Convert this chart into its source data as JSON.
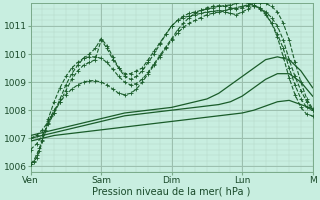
{
  "background_color": "#c8eee0",
  "grid_color_major": "#9bbfae",
  "grid_color_minor": "#b5d9c9",
  "line_color": "#1a5c2a",
  "xlabel": "Pression niveau de la mer( hPa )",
  "xlim": [
    0,
    96
  ],
  "ylim": [
    1005.8,
    1011.8
  ],
  "yticks": [
    1006,
    1007,
    1008,
    1009,
    1010,
    1011
  ],
  "xtick_labels": [
    "Ven",
    "Sam",
    "Dim",
    "Lun",
    "M"
  ],
  "xtick_positions": [
    0,
    24,
    48,
    72,
    96
  ],
  "series": [
    {
      "x": [
        0,
        4,
        8,
        12,
        16,
        20,
        24,
        28,
        32,
        36,
        40,
        44,
        48,
        52,
        56,
        60,
        64,
        68,
        72,
        76,
        80,
        84,
        88,
        92,
        96
      ],
      "y": [
        1006.9,
        1007.0,
        1007.1,
        1007.15,
        1007.2,
        1007.25,
        1007.3,
        1007.35,
        1007.4,
        1007.45,
        1007.5,
        1007.55,
        1007.6,
        1007.65,
        1007.7,
        1007.75,
        1007.8,
        1007.85,
        1007.9,
        1008.0,
        1008.15,
        1008.3,
        1008.35,
        1008.2,
        1008.05
      ],
      "style": "-",
      "marker": null,
      "lw": 0.9,
      "ms": 0
    },
    {
      "x": [
        0,
        4,
        8,
        12,
        16,
        20,
        24,
        28,
        32,
        36,
        40,
        44,
        48,
        52,
        56,
        60,
        64,
        68,
        72,
        76,
        80,
        84,
        88,
        92,
        96
      ],
      "y": [
        1007.0,
        1007.1,
        1007.2,
        1007.3,
        1007.4,
        1007.5,
        1007.6,
        1007.7,
        1007.8,
        1007.85,
        1007.9,
        1007.95,
        1008.0,
        1008.05,
        1008.1,
        1008.15,
        1008.2,
        1008.3,
        1008.5,
        1008.8,
        1009.1,
        1009.3,
        1009.3,
        1009.0,
        1008.5
      ],
      "style": "-",
      "marker": null,
      "lw": 0.9,
      "ms": 0
    },
    {
      "x": [
        0,
        4,
        8,
        12,
        16,
        20,
        24,
        28,
        32,
        36,
        40,
        44,
        48,
        52,
        56,
        60,
        64,
        68,
        72,
        76,
        80,
        84,
        88,
        92,
        96
      ],
      "y": [
        1007.1,
        1007.2,
        1007.3,
        1007.4,
        1007.5,
        1007.6,
        1007.7,
        1007.8,
        1007.9,
        1007.95,
        1008.0,
        1008.05,
        1008.1,
        1008.2,
        1008.3,
        1008.4,
        1008.6,
        1008.9,
        1009.2,
        1009.5,
        1009.8,
        1009.9,
        1009.8,
        1009.4,
        1008.8
      ],
      "style": "-",
      "marker": null,
      "lw": 0.9,
      "ms": 0
    },
    {
      "x": [
        0,
        2,
        4,
        6,
        8,
        10,
        12,
        14,
        16,
        18,
        20,
        22,
        24,
        26,
        28,
        30,
        32,
        34,
        36,
        38,
        40,
        42,
        44,
        46,
        48,
        50,
        52,
        54,
        56,
        58,
        60,
        62,
        64,
        66,
        68,
        70,
        72,
        74,
        76,
        78,
        80,
        82,
        84,
        86,
        88,
        90,
        92,
        94,
        96
      ],
      "y": [
        1007.0,
        1007.1,
        1007.3,
        1007.6,
        1007.9,
        1008.3,
        1008.7,
        1009.1,
        1009.4,
        1009.6,
        1009.7,
        1009.8,
        1010.5,
        1010.2,
        1009.8,
        1009.5,
        1009.3,
        1009.3,
        1009.4,
        1009.5,
        1009.8,
        1010.1,
        1010.4,
        1010.7,
        1011.0,
        1011.2,
        1011.3,
        1011.35,
        1011.4,
        1011.45,
        1011.5,
        1011.52,
        1011.55,
        1011.5,
        1011.45,
        1011.4,
        1011.5,
        1011.6,
        1011.7,
        1011.65,
        1011.5,
        1011.3,
        1011.0,
        1010.5,
        1009.8,
        1009.2,
        1008.7,
        1008.3,
        1008.0
      ],
      "style": "--",
      "marker": "+",
      "lw": 0.8,
      "ms": 2.5
    },
    {
      "x": [
        0,
        2,
        4,
        6,
        8,
        10,
        12,
        14,
        16,
        18,
        20,
        22,
        24,
        26,
        28,
        30,
        32,
        34,
        36,
        38,
        40,
        42,
        44,
        46,
        48,
        50,
        52,
        54,
        56,
        58,
        60,
        62,
        64,
        66,
        68,
        70,
        72,
        74,
        76,
        78,
        80,
        82,
        84,
        86,
        88,
        90,
        92,
        94,
        96
      ],
      "y": [
        1006.6,
        1006.8,
        1007.1,
        1007.5,
        1007.9,
        1008.4,
        1008.9,
        1009.3,
        1009.6,
        1009.85,
        1010.0,
        1010.2,
        1010.55,
        1010.3,
        1009.9,
        1009.5,
        1009.2,
        1009.1,
        1009.2,
        1009.4,
        1009.7,
        1010.0,
        1010.35,
        1010.7,
        1011.0,
        1011.2,
        1011.35,
        1011.45,
        1011.5,
        1011.55,
        1011.6,
        1011.65,
        1011.7,
        1011.72,
        1011.75,
        1011.8,
        1011.85,
        1011.82,
        1011.75,
        1011.6,
        1011.4,
        1011.1,
        1010.7,
        1010.2,
        1009.5,
        1008.9,
        1008.4,
        1008.1,
        1008.0
      ],
      "style": "--",
      "marker": "+",
      "lw": 0.8,
      "ms": 2.5
    },
    {
      "x": [
        0,
        1,
        2,
        3,
        4,
        5,
        6,
        7,
        8,
        10,
        12,
        14,
        16,
        18,
        20,
        22,
        24,
        26,
        28,
        30,
        32,
        34,
        36,
        38,
        40,
        42,
        44,
        46,
        48,
        50,
        52,
        54,
        56,
        58,
        60,
        62,
        64,
        66,
        68,
        70,
        72,
        74,
        76,
        78,
        80,
        82,
        84,
        86,
        88,
        90,
        92,
        94,
        96
      ],
      "y": [
        1006.1,
        1006.2,
        1006.4,
        1006.65,
        1006.95,
        1007.25,
        1007.55,
        1007.8,
        1008.0,
        1008.3,
        1008.55,
        1008.75,
        1008.9,
        1009.0,
        1009.05,
        1009.05,
        1009.0,
        1008.9,
        1008.75,
        1008.6,
        1008.55,
        1008.6,
        1008.75,
        1009.0,
        1009.3,
        1009.6,
        1009.9,
        1010.2,
        1010.5,
        1010.75,
        1010.95,
        1011.1,
        1011.2,
        1011.3,
        1011.4,
        1011.45,
        1011.5,
        1011.55,
        1011.6,
        1011.65,
        1011.7,
        1011.75,
        1011.8,
        1011.82,
        1011.8,
        1011.7,
        1011.5,
        1011.1,
        1010.5,
        1009.7,
        1009.0,
        1008.4,
        1008.05
      ],
      "style": "--",
      "marker": "+",
      "lw": 0.8,
      "ms": 2.5
    },
    {
      "x": [
        0,
        1,
        2,
        3,
        4,
        5,
        6,
        8,
        10,
        12,
        14,
        16,
        18,
        20,
        22,
        24,
        26,
        28,
        30,
        32,
        34,
        36,
        38,
        40,
        42,
        44,
        46,
        48,
        50,
        52,
        54,
        56,
        58,
        60,
        62,
        64,
        66,
        68,
        70,
        72,
        74,
        76,
        78,
        80,
        82,
        84,
        86,
        88,
        90,
        92,
        94,
        96
      ],
      "y": [
        1006.1,
        1006.15,
        1006.3,
        1006.55,
        1006.9,
        1007.3,
        1007.7,
        1008.3,
        1008.8,
        1009.2,
        1009.5,
        1009.7,
        1009.85,
        1009.9,
        1009.9,
        1009.85,
        1009.7,
        1009.45,
        1009.2,
        1009.0,
        1008.9,
        1008.95,
        1009.1,
        1009.35,
        1009.65,
        1009.95,
        1010.25,
        1010.55,
        1010.85,
        1011.1,
        1011.3,
        1011.45,
        1011.55,
        1011.65,
        1011.7,
        1011.72,
        1011.7,
        1011.65,
        1011.6,
        1011.65,
        1011.7,
        1011.72,
        1011.65,
        1011.45,
        1011.1,
        1010.6,
        1009.9,
        1009.15,
        1008.55,
        1008.1,
        1007.85,
        1007.8
      ],
      "style": "--",
      "marker": "+",
      "lw": 0.8,
      "ms": 2.5
    }
  ]
}
